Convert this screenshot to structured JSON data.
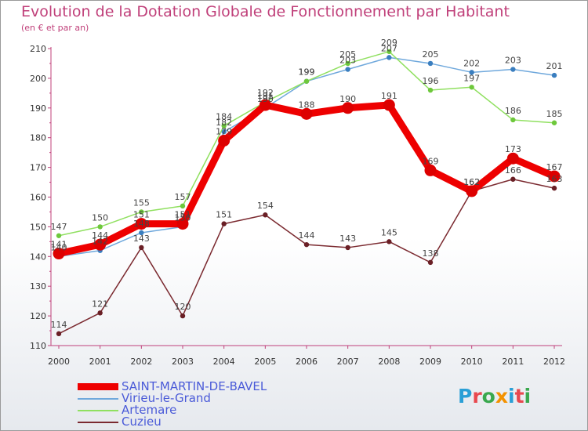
{
  "title": "Evolution de la Dotation Globale de Fonctionnement par Habitant",
  "subtitle": "(en € et par an)",
  "logo": {
    "text": "Proxiti",
    "letters": [
      "P",
      "r",
      "o",
      "x",
      "i",
      "t",
      "i"
    ],
    "colors": [
      "#2a9fd6",
      "#e8484e",
      "#3aa84e",
      "#f39200",
      "#2a9fd6",
      "#e8484e",
      "#3aa84e"
    ]
  },
  "chart_data": {
    "type": "line",
    "title": "Evolution de la Dotation Globale de Fonctionnement par Habitant",
    "subtitle": "(en € et par an)",
    "xlabel": "",
    "ylabel": "",
    "x": [
      "2000",
      "2001",
      "2002",
      "2003",
      "2004",
      "2005",
      "2006",
      "2007",
      "2008",
      "2009",
      "2010",
      "2011",
      "2012"
    ],
    "ylim": [
      110,
      210
    ],
    "yticks": [
      110,
      120,
      130,
      140,
      150,
      160,
      170,
      180,
      190,
      200,
      210
    ],
    "grid": false,
    "legend_position": "bottom-left",
    "series": [
      {
        "name": "SAINT-MARTIN-DE-BAVEL",
        "color": "#ee0000",
        "point_color": "#dd0000",
        "weight": "bold",
        "values": [
          141,
          144,
          151,
          151,
          179,
          191,
          188,
          190,
          191,
          169,
          162,
          173,
          167
        ]
      },
      {
        "name": "Virieu-le-Grand",
        "color": "#6fa8dc",
        "point_color": "#3a7ebf",
        "weight": "thin",
        "values": [
          140,
          142,
          148,
          150,
          182,
          190,
          199,
          203,
          207,
          205,
          202,
          203,
          201
        ]
      },
      {
        "name": "Artemare",
        "color": "#90e060",
        "point_color": "#6ec83c",
        "weight": "thin",
        "values": [
          147,
          150,
          155,
          157,
          184,
          192,
          199,
          205,
          209,
          196,
          197,
          186,
          185
        ]
      },
      {
        "name": "Cuzieu",
        "color": "#7b2a30",
        "point_color": "#6a1f25",
        "weight": "thin",
        "values": [
          114,
          121,
          143,
          120,
          151,
          154,
          144,
          143,
          145,
          138,
          162,
          166,
          163
        ]
      }
    ]
  }
}
